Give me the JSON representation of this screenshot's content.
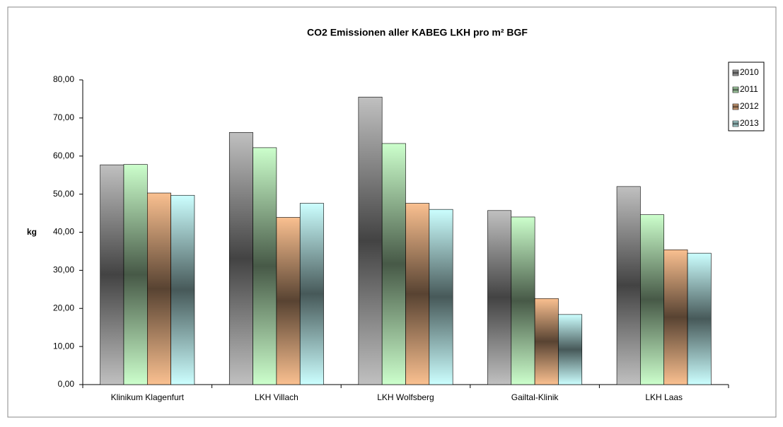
{
  "chart_data": {
    "type": "bar",
    "title": "CO2 Emissionen  aller KABEG LKH pro m² BGF",
    "y_label": "kg",
    "categories": [
      "Klinikum Klagenfurt",
      "LKH Villach",
      "LKH Wolfsberg",
      "Gailtal-Klinik",
      "LKH Laas"
    ],
    "series": [
      {
        "name": "2010",
        "color": "#c0c0c0",
        "values": [
          57.7,
          66.2,
          75.5,
          45.7,
          52.0
        ]
      },
      {
        "name": "2011",
        "color": "#ccffcc",
        "values": [
          57.8,
          62.2,
          63.3,
          44.0,
          44.6
        ]
      },
      {
        "name": "2012",
        "color": "#fac090",
        "values": [
          50.3,
          43.9,
          47.6,
          22.6,
          35.4
        ]
      },
      {
        "name": "2013",
        "color": "#ccffff",
        "values": [
          49.7,
          47.6,
          46.0,
          18.4,
          34.5
        ]
      }
    ],
    "ylim": [
      0,
      80
    ],
    "yticks": [
      {
        "value": 0,
        "label": "0,00"
      },
      {
        "value": 10,
        "label": "10,00"
      },
      {
        "value": 20,
        "label": "20,00"
      },
      {
        "value": 30,
        "label": "30,00"
      },
      {
        "value": 40,
        "label": "40,00"
      },
      {
        "value": 50,
        "label": "50,00"
      },
      {
        "value": 60,
        "label": "60,00"
      },
      {
        "value": 70,
        "label": "70,00"
      },
      {
        "value": 80,
        "label": "80,00"
      }
    ],
    "legend": "right"
  }
}
